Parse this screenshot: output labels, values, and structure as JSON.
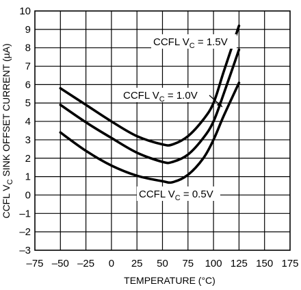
{
  "chart_data": {
    "type": "line",
    "title": "",
    "xlabel": "TEMPERATURE (°C)",
    "ylabel": {
      "main": "CCFL V",
      "sub": "C",
      "rest": " SINK OFFSET CURRENT (µA)"
    },
    "xlim": [
      -75,
      175
    ],
    "ylim": [
      -3,
      10
    ],
    "x_ticks": [
      -75,
      -50,
      -25,
      0,
      25,
      50,
      75,
      100,
      125,
      150,
      175
    ],
    "x_tick_labels": [
      "–75",
      "–50",
      "–25",
      "0",
      "25",
      "50",
      "75",
      "100",
      "125",
      "150",
      "175"
    ],
    "y_ticks": [
      -3,
      -2,
      -1,
      0,
      1,
      2,
      3,
      4,
      5,
      6,
      7,
      8,
      9,
      10
    ],
    "y_tick_labels": [
      "–3",
      "–2",
      "–1",
      "0",
      "1",
      "2",
      "3",
      "4",
      "5",
      "6",
      "7",
      "8",
      "9",
      "10"
    ],
    "grid": true,
    "series": [
      {
        "key": "vc15",
        "x": [
          -50,
          -25,
          0,
          25,
          50,
          60,
          75,
          90,
          100,
          110,
          125
        ],
        "values": [
          5.8,
          4.9,
          4.0,
          3.2,
          2.75,
          2.75,
          3.2,
          4.1,
          5.0,
          6.7,
          9.2
        ]
      },
      {
        "key": "vc10",
        "x": [
          -50,
          -25,
          0,
          25,
          50,
          60,
          75,
          90,
          100,
          110,
          125
        ],
        "values": [
          4.9,
          3.95,
          3.1,
          2.3,
          1.8,
          1.8,
          2.2,
          3.1,
          4.0,
          5.5,
          7.9
        ]
      },
      {
        "key": "vc05",
        "x": [
          -50,
          -25,
          0,
          25,
          50,
          60,
          75,
          90,
          100,
          110,
          125
        ],
        "values": [
          3.4,
          2.4,
          1.6,
          1.05,
          0.75,
          0.7,
          1.1,
          2.0,
          3.0,
          4.3,
          6.1
        ]
      }
    ],
    "annotations": [
      {
        "key": "vc15",
        "pre": "CCFL V",
        "sub": "C",
        "post": " = 1.5V"
      },
      {
        "key": "vc10",
        "pre": "CCFL V",
        "sub": "C",
        "post": " = 1.0V"
      },
      {
        "key": "vc05",
        "pre": "CCFL V",
        "sub": "C",
        "post": " = 0.5V"
      }
    ]
  }
}
